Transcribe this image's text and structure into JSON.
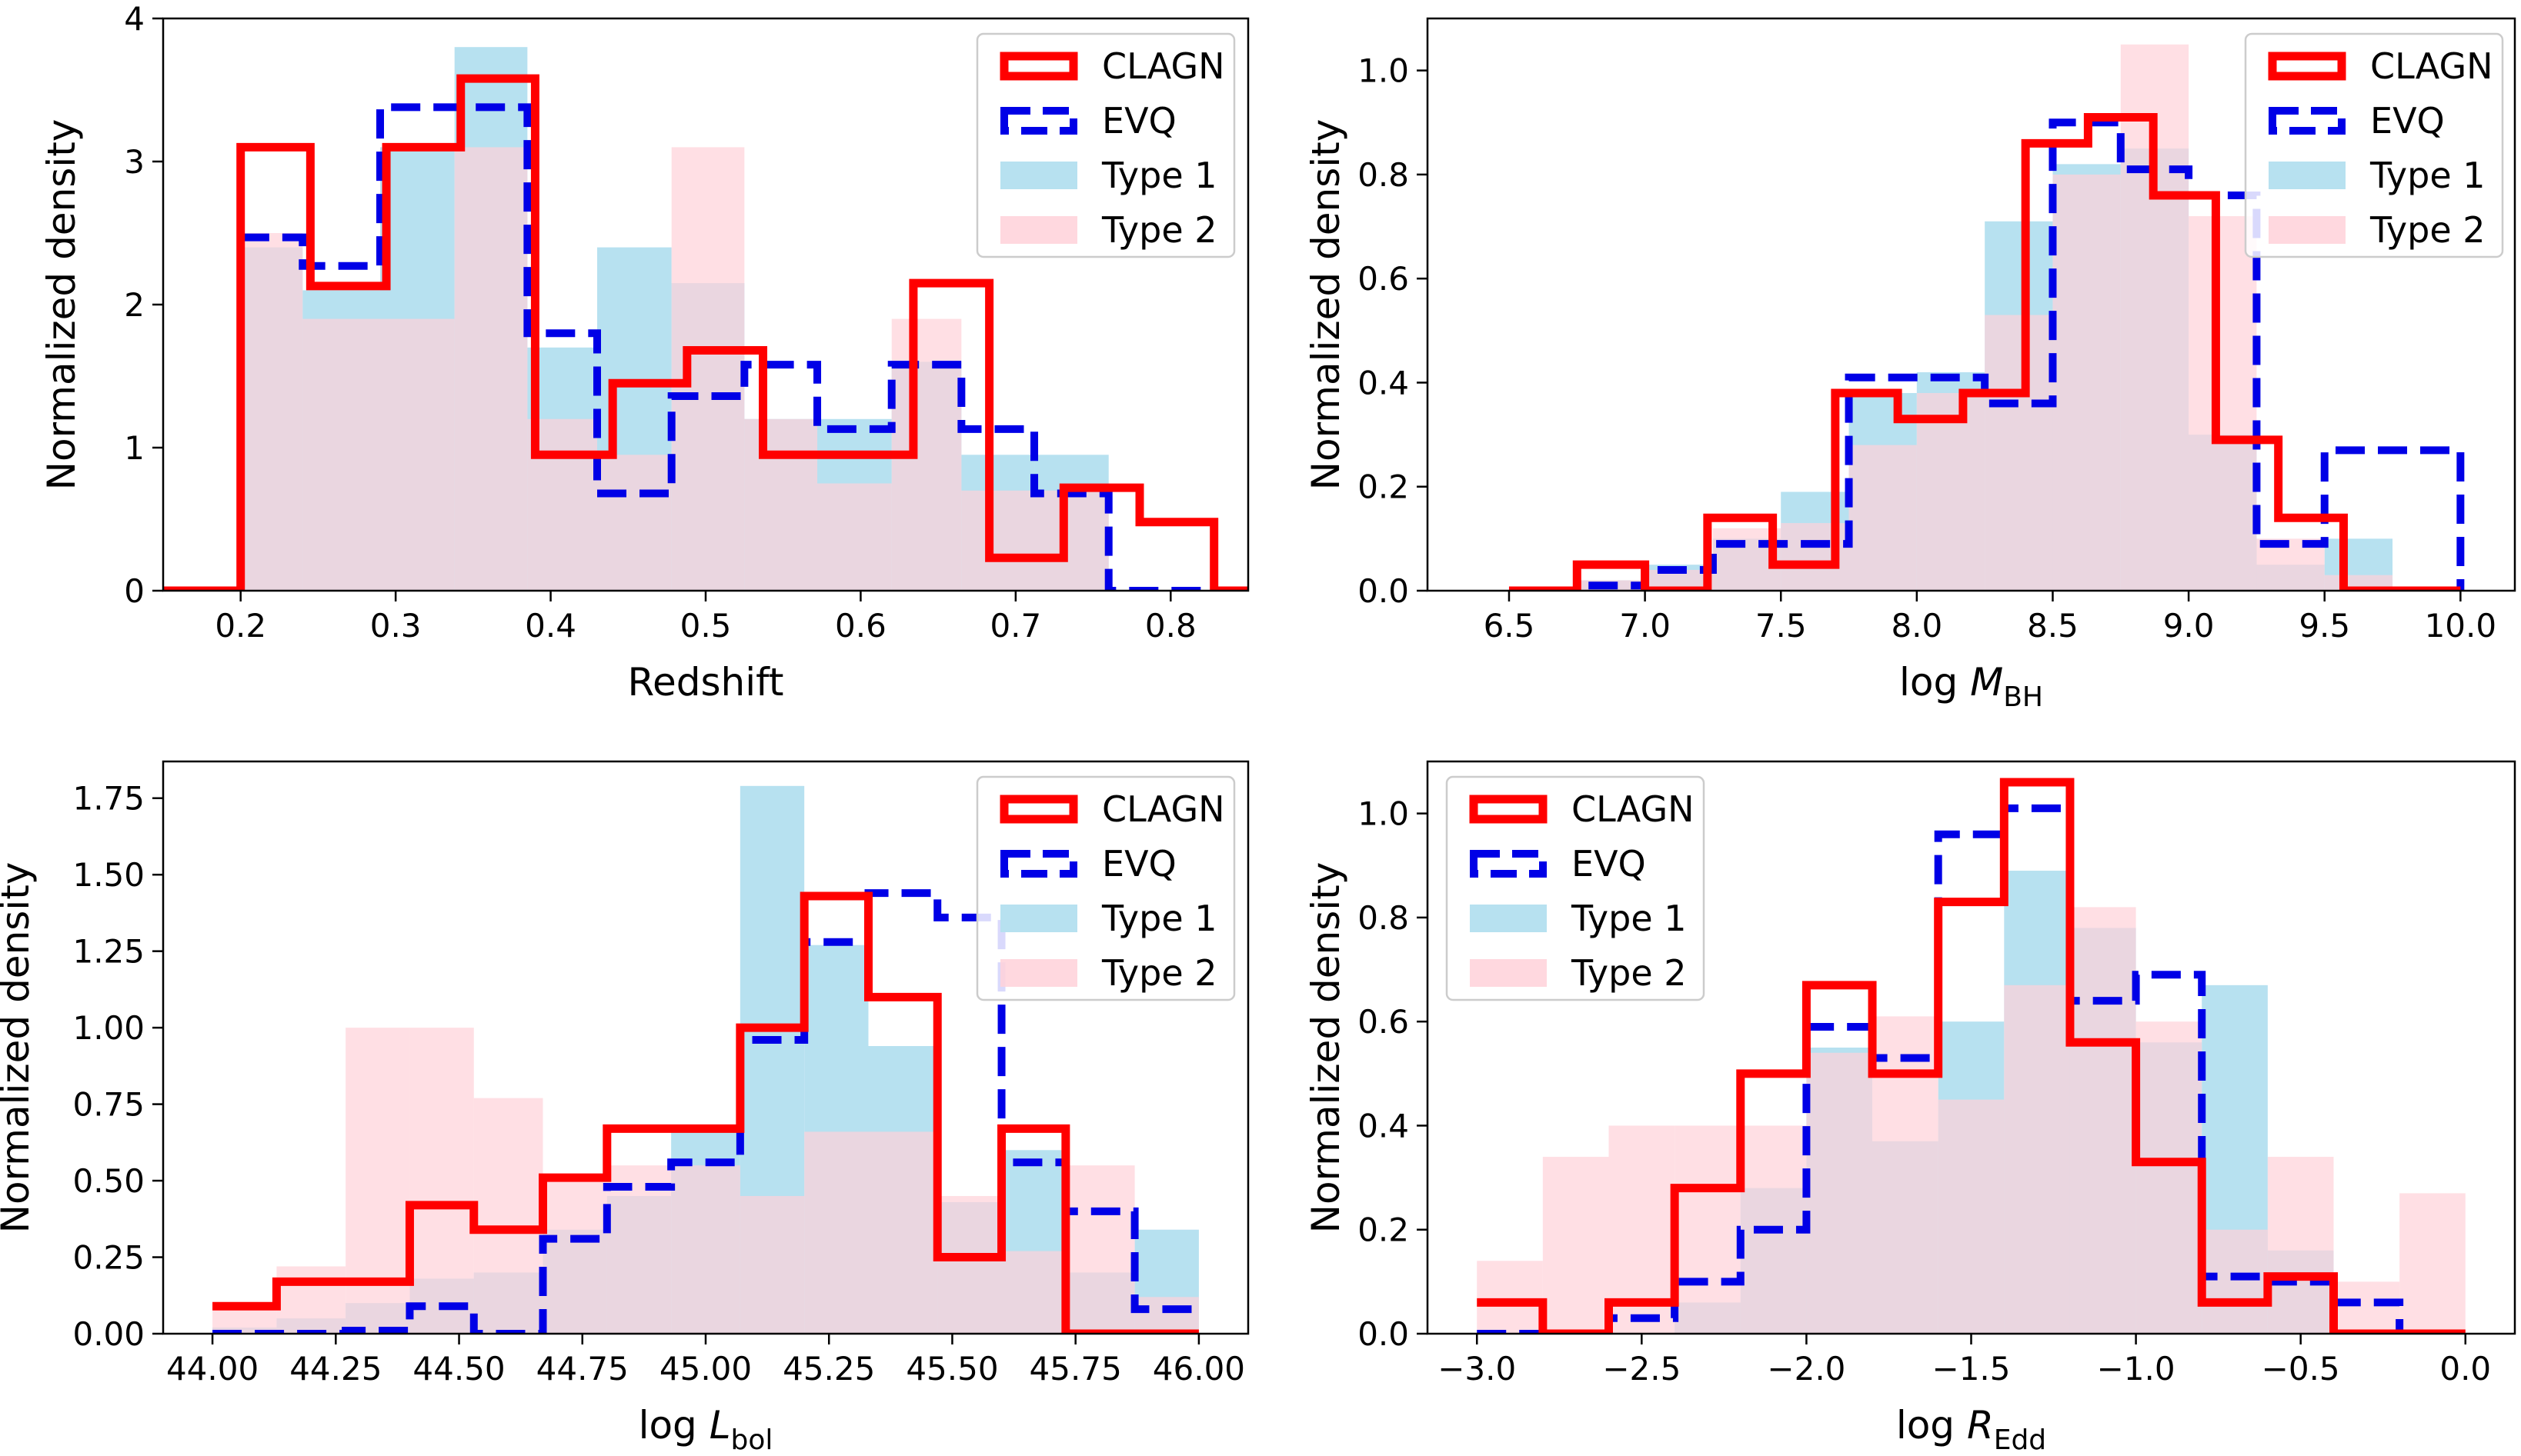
{
  "colors": {
    "clagn": "#ff0000",
    "evq": "#0000e6",
    "type1": "#b7e1f0",
    "type2": "#ffd1d9",
    "overlap": "#dcd0de"
  },
  "chart_data": [
    {
      "type": "histogram",
      "xlabel": "Redshift",
      "ylabel": "Normalized density",
      "xlim": [
        0.15,
        0.85
      ],
      "ylim": [
        0,
        4
      ],
      "xticks": [
        0.2,
        0.3,
        0.4,
        0.5,
        0.6,
        0.7,
        0.8
      ],
      "xtick_labels": [
        "0.2",
        "0.3",
        "0.4",
        "0.5",
        "0.6",
        "0.7",
        "0.8"
      ],
      "yticks": [
        0,
        1,
        2,
        3,
        4
      ],
      "ytick_labels": [
        "0",
        "1",
        "2",
        "3",
        "4"
      ],
      "legend_position": "top-right",
      "series": [
        {
          "name": "Type 1",
          "style": "filled",
          "color": "#b7e1f0",
          "edges": [
            0.2,
            0.24,
            0.29,
            0.338,
            0.385,
            0.43,
            0.478,
            0.525,
            0.572,
            0.62,
            0.665,
            0.712,
            0.76
          ],
          "values": [
            2.4,
            2.1,
            3.1,
            3.8,
            1.7,
            2.4,
            2.15,
            1.2,
            1.2,
            1.6,
            0.95,
            0.95
          ]
        },
        {
          "name": "Type 2",
          "style": "filled",
          "color": "#ffd1d9",
          "edges": [
            0.2,
            0.24,
            0.29,
            0.338,
            0.385,
            0.43,
            0.478,
            0.525,
            0.572,
            0.62,
            0.665,
            0.712,
            0.76
          ],
          "values": [
            2.5,
            1.9,
            1.9,
            3.1,
            1.2,
            0.95,
            3.1,
            1.2,
            0.75,
            1.9,
            0.7,
            0.7
          ]
        },
        {
          "name": "CLAGN",
          "style": "step",
          "color": "#ff0000",
          "edges": [
            0.1,
            0.2,
            0.245,
            0.294,
            0.342,
            0.39,
            0.44,
            0.488,
            0.537,
            0.585,
            0.634,
            0.683,
            0.731,
            0.78,
            0.828,
            0.9
          ],
          "values": [
            0,
            3.1,
            2.13,
            3.1,
            3.58,
            0.95,
            1.45,
            1.68,
            0.95,
            0.95,
            2.15,
            0.23,
            0.72,
            0.48,
            0
          ]
        },
        {
          "name": "EVQ",
          "style": "dashed-step",
          "color": "#0000e6",
          "edges": [
            0.1,
            0.2,
            0.24,
            0.29,
            0.338,
            0.385,
            0.43,
            0.478,
            0.525,
            0.572,
            0.62,
            0.665,
            0.712,
            0.76,
            0.9
          ],
          "values": [
            0,
            2.47,
            2.27,
            3.38,
            3.38,
            1.8,
            0.68,
            1.36,
            1.58,
            1.13,
            1.58,
            1.13,
            0.68,
            0
          ]
        }
      ]
    },
    {
      "type": "histogram",
      "xlabel": "log M_BH",
      "ylabel": "Normalized density",
      "xlim": [
        6.2,
        10.2
      ],
      "ylim": [
        0,
        1.1
      ],
      "xticks": [
        6.5,
        7.0,
        7.5,
        8.0,
        8.5,
        9.0,
        9.5,
        10.0
      ],
      "xtick_labels": [
        "6.5",
        "7.0",
        "7.5",
        "8.0",
        "8.5",
        "9.0",
        "9.5",
        "10.0"
      ],
      "yticks": [
        0,
        0.2,
        0.4,
        0.6,
        0.8,
        1.0
      ],
      "ytick_labels": [
        "0.0",
        "0.2",
        "0.4",
        "0.6",
        "0.8",
        "1.0"
      ],
      "legend_position": "top-right",
      "series": [
        {
          "name": "Type 1",
          "style": "filled",
          "color": "#b7e1f0",
          "edges": [
            6.5,
            6.75,
            7.0,
            7.25,
            7.5,
            7.75,
            8.0,
            8.25,
            8.5,
            8.75,
            9.0,
            9.25,
            9.5,
            9.75
          ],
          "values": [
            0,
            0.02,
            0.05,
            0.1,
            0.19,
            0.38,
            0.42,
            0.71,
            0.82,
            0.85,
            0.3,
            0.05,
            0.1
          ]
        },
        {
          "name": "Type 2",
          "style": "filled",
          "color": "#ffd1d9",
          "edges": [
            6.5,
            6.75,
            7.0,
            7.25,
            7.5,
            7.75,
            8.0,
            8.25,
            8.5,
            8.75,
            9.0,
            9.25,
            9.5,
            9.75
          ],
          "values": [
            0,
            0.02,
            0.04,
            0.12,
            0.13,
            0.28,
            0.38,
            0.53,
            0.8,
            1.05,
            0.72,
            0.1,
            0.03
          ]
        },
        {
          "name": "CLAGN",
          "style": "step",
          "color": "#ff0000",
          "edges": [
            6.5,
            6.75,
            7.0,
            7.23,
            7.47,
            7.7,
            7.93,
            8.17,
            8.4,
            8.63,
            8.87,
            9.1,
            9.33,
            9.57,
            10.0
          ],
          "values": [
            0,
            0.05,
            0,
            0.14,
            0.05,
            0.38,
            0.33,
            0.38,
            0.86,
            0.91,
            0.76,
            0.29,
            0.14,
            0
          ]
        },
        {
          "name": "EVQ",
          "style": "dashed-step",
          "color": "#0000e6",
          "edges": [
            6.5,
            6.75,
            7.0,
            7.25,
            7.5,
            7.75,
            8.0,
            8.25,
            8.5,
            8.75,
            9.0,
            9.25,
            9.5,
            10.0
          ],
          "values": [
            0,
            0.01,
            0.04,
            0.09,
            0.09,
            0.41,
            0.41,
            0.36,
            0.9,
            0.81,
            0.76,
            0.09,
            0.27,
            0
          ]
        }
      ]
    },
    {
      "type": "histogram",
      "xlabel": "log L_bol",
      "ylabel": "Normalized density",
      "xlim": [
        43.9,
        46.1
      ],
      "ylim": [
        0,
        1.87
      ],
      "xticks": [
        44.0,
        44.25,
        44.5,
        44.75,
        45.0,
        45.25,
        45.5,
        45.75,
        46.0
      ],
      "xtick_labels": [
        "44.00",
        "44.25",
        "44.50",
        "44.75",
        "45.00",
        "45.25",
        "45.50",
        "45.75",
        "46.00"
      ],
      "yticks": [
        0,
        0.25,
        0.5,
        0.75,
        1.0,
        1.25,
        1.5,
        1.75
      ],
      "ytick_labels": [
        "0.00",
        "0.25",
        "0.50",
        "0.75",
        "1.00",
        "1.25",
        "1.50",
        "1.75"
      ],
      "legend_position": "top-right",
      "series": [
        {
          "name": "Type 1",
          "style": "filled",
          "color": "#b7e1f0",
          "edges": [
            44.0,
            44.13,
            44.27,
            44.4,
            44.53,
            44.67,
            44.8,
            44.93,
            45.07,
            45.2,
            45.33,
            45.47,
            45.6,
            45.73,
            45.87,
            46.0
          ],
          "values": [
            0.02,
            0.05,
            0.1,
            0.18,
            0.2,
            0.34,
            0.45,
            0.67,
            1.79,
            1.27,
            0.94,
            0.43,
            0.6,
            0.2,
            0.34
          ]
        },
        {
          "name": "Type 2",
          "style": "filled",
          "color": "#ffd1d9",
          "edges": [
            44.0,
            44.13,
            44.27,
            44.4,
            44.53,
            44.67,
            44.8,
            44.93,
            45.07,
            45.2,
            45.33,
            45.47,
            45.6,
            45.73,
            45.87,
            46.0
          ],
          "values": [
            0.1,
            0.22,
            1.0,
            1.0,
            0.77,
            0.5,
            0.55,
            0.55,
            0.45,
            0.66,
            0.66,
            0.45,
            0.27,
            0.55,
            0.12
          ]
        },
        {
          "name": "CLAGN",
          "style": "step",
          "color": "#ff0000",
          "edges": [
            44.0,
            44.13,
            44.27,
            44.4,
            44.53,
            44.67,
            44.8,
            44.93,
            45.07,
            45.2,
            45.33,
            45.47,
            45.6,
            45.73,
            45.87,
            46.0
          ],
          "values": [
            0.09,
            0.17,
            0.17,
            0.42,
            0.34,
            0.51,
            0.67,
            0.67,
            1.0,
            1.43,
            1.1,
            0.25,
            0.67,
            0,
            0
          ]
        },
        {
          "name": "EVQ",
          "style": "dashed-step",
          "color": "#0000e6",
          "edges": [
            44.0,
            44.13,
            44.27,
            44.4,
            44.53,
            44.67,
            44.8,
            44.93,
            45.07,
            45.2,
            45.33,
            45.47,
            45.6,
            45.73,
            45.87,
            46.0
          ],
          "values": [
            0,
            0,
            0.01,
            0.09,
            0,
            0.31,
            0.48,
            0.56,
            0.96,
            1.28,
            1.44,
            1.36,
            0.56,
            0.4,
            0.08
          ]
        }
      ]
    },
    {
      "type": "histogram",
      "xlabel": "log R_Edd",
      "ylabel": "Normalized density",
      "xlim": [
        -3.15,
        0.15
      ],
      "ylim": [
        0,
        1.1
      ],
      "xticks": [
        -3.0,
        -2.5,
        -2.0,
        -1.5,
        -1.0,
        -0.5,
        0.0
      ],
      "xtick_labels": [
        "−3.0",
        "−2.5",
        "−2.0",
        "−1.5",
        "−1.0",
        "−0.5",
        "0.0"
      ],
      "yticks": [
        0,
        0.2,
        0.4,
        0.6,
        0.8,
        1.0
      ],
      "ytick_labels": [
        "0.0",
        "0.2",
        "0.4",
        "0.6",
        "0.8",
        "1.0"
      ],
      "legend_position": "top-left",
      "series": [
        {
          "name": "Type 1",
          "style": "filled",
          "color": "#b7e1f0",
          "edges": [
            -3.0,
            -2.8,
            -2.6,
            -2.4,
            -2.2,
            -2.0,
            -1.8,
            -1.6,
            -1.4,
            -1.2,
            -1.0,
            -0.8,
            -0.6,
            -0.4,
            -0.2,
            0.0
          ],
          "values": [
            0,
            0,
            0,
            0.06,
            0.28,
            0.55,
            0.37,
            0.6,
            0.89,
            0.78,
            0.56,
            0.67,
            0.16,
            0,
            0
          ]
        },
        {
          "name": "Type 2",
          "style": "filled",
          "color": "#ffd1d9",
          "edges": [
            -3.0,
            -2.8,
            -2.6,
            -2.4,
            -2.2,
            -2.0,
            -1.8,
            -1.6,
            -1.4,
            -1.2,
            -1.0,
            -0.8,
            -0.6,
            -0.4,
            -0.2,
            0.0
          ],
          "values": [
            0.14,
            0.34,
            0.4,
            0.4,
            0.4,
            0.54,
            0.61,
            0.45,
            0.67,
            0.82,
            0.6,
            0.2,
            0.34,
            0.1,
            0.27
          ]
        },
        {
          "name": "CLAGN",
          "style": "step",
          "color": "#ff0000",
          "edges": [
            -3.0,
            -2.8,
            -2.6,
            -2.4,
            -2.2,
            -2.0,
            -1.8,
            -1.6,
            -1.4,
            -1.2,
            -1.0,
            -0.8,
            -0.6,
            -0.4,
            -0.2,
            0.0
          ],
          "values": [
            0.06,
            0,
            0.06,
            0.28,
            0.5,
            0.67,
            0.5,
            0.83,
            1.06,
            0.56,
            0.33,
            0.06,
            0.11,
            0,
            0
          ]
        },
        {
          "name": "EVQ",
          "style": "dashed-step",
          "color": "#0000e6",
          "edges": [
            -3.0,
            -2.8,
            -2.6,
            -2.4,
            -2.2,
            -2.0,
            -1.8,
            -1.6,
            -1.4,
            -1.2,
            -1.0,
            -0.8,
            -0.6,
            -0.4,
            -0.2,
            0.0
          ],
          "values": [
            0,
            0,
            0.03,
            0.1,
            0.2,
            0.59,
            0.53,
            0.96,
            1.01,
            0.64,
            0.69,
            0.11,
            0.1,
            0.06,
            0
          ]
        }
      ]
    }
  ]
}
